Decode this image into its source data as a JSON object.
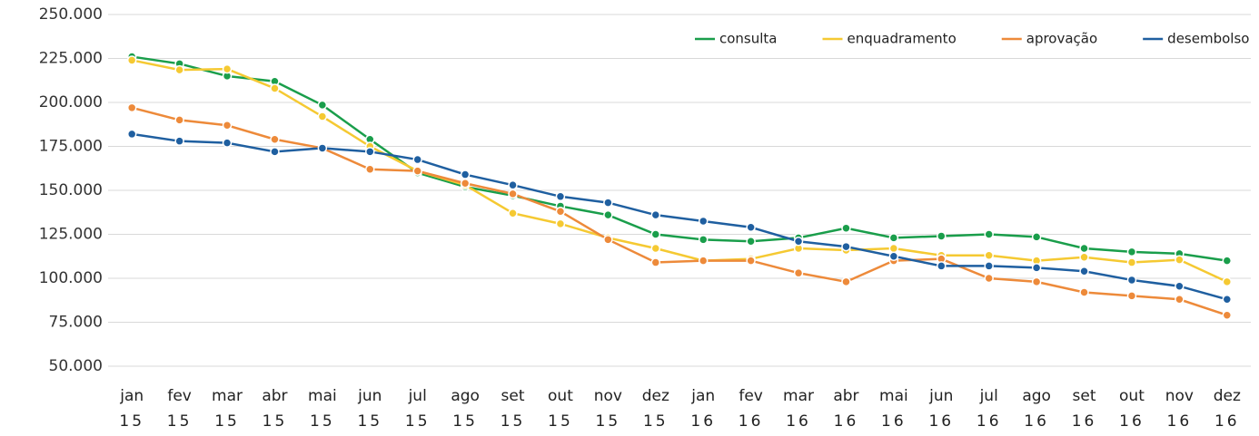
{
  "chart_data": {
    "type": "line",
    "categories": [
      [
        "jan",
        "15"
      ],
      [
        "fev",
        "15"
      ],
      [
        "mar",
        "15"
      ],
      [
        "abr",
        "15"
      ],
      [
        "mai",
        "15"
      ],
      [
        "jun",
        "15"
      ],
      [
        "jul",
        "15"
      ],
      [
        "ago",
        "15"
      ],
      [
        "set",
        "15"
      ],
      [
        "out",
        "15"
      ],
      [
        "nov",
        "15"
      ],
      [
        "dez",
        "15"
      ],
      [
        "jan",
        "16"
      ],
      [
        "fev",
        "16"
      ],
      [
        "mar",
        "16"
      ],
      [
        "abr",
        "16"
      ],
      [
        "mai",
        "16"
      ],
      [
        "jun",
        "16"
      ],
      [
        "jul",
        "16"
      ],
      [
        "ago",
        "16"
      ],
      [
        "set",
        "16"
      ],
      [
        "out",
        "16"
      ],
      [
        "nov",
        "16"
      ],
      [
        "dez",
        "16"
      ]
    ],
    "series": [
      {
        "name": "consulta",
        "color": "#1a9e4b",
        "values": [
          226000,
          222000,
          215000,
          212000,
          198500,
          179000,
          160000,
          152000,
          147000,
          141000,
          136000,
          125000,
          122000,
          121000,
          123000,
          128500,
          123000,
          124000,
          125000,
          123500,
          117000,
          115000,
          114000,
          110000
        ]
      },
      {
        "name": "enquadramento",
        "color": "#f5c932",
        "values": [
          224000,
          218500,
          219000,
          208000,
          192000,
          175000,
          161000,
          153000,
          137000,
          131000,
          123000,
          117000,
          110000,
          111000,
          117000,
          116000,
          117000,
          113000,
          113000,
          110000,
          112000,
          109000,
          110500,
          98000
        ]
      },
      {
        "name": "aprovação",
        "color": "#ed8a3a",
        "values": [
          197000,
          190000,
          187000,
          179000,
          174000,
          162000,
          161000,
          154000,
          148000,
          138000,
          122000,
          109000,
          110000,
          110000,
          103000,
          98000,
          110000,
          111000,
          100000,
          98000,
          92000,
          90000,
          88000,
          79000
        ]
      },
      {
        "name": "desembolso",
        "color": "#1f5fa0",
        "values": [
          182000,
          178000,
          177000,
          172000,
          174000,
          172000,
          167500,
          159000,
          153000,
          146500,
          143000,
          136000,
          132500,
          129000,
          121000,
          118000,
          112500,
          107000,
          107000,
          106000,
          104000,
          99000,
          95500,
          88000
        ]
      }
    ],
    "ylim": [
      50000,
      250000
    ],
    "yticks": [
      {
        "value": 50000,
        "label": "50.000"
      },
      {
        "value": 75000,
        "label": "75.000"
      },
      {
        "value": 100000,
        "label": "100.000"
      },
      {
        "value": 125000,
        "label": "125.000"
      },
      {
        "value": 150000,
        "label": "150.000"
      },
      {
        "value": 175000,
        "label": "175.000"
      },
      {
        "value": 200000,
        "label": "200.000"
      },
      {
        "value": 225000,
        "label": "225.000"
      },
      {
        "value": 250000,
        "label": "250.000"
      }
    ],
    "grid": true,
    "legend": "top-right"
  }
}
